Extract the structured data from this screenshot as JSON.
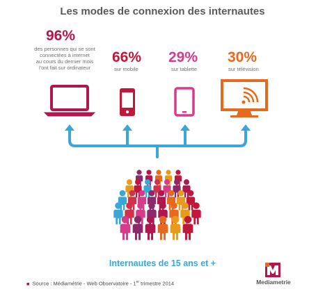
{
  "title": "Les modes de connexion des internautes",
  "stats": [
    {
      "value": "96%",
      "lines": [
        "des personnes qui se sont",
        "connectées à internet",
        "au cours du dernier mois",
        "l'ont fait sur ordinateur"
      ],
      "icon": "laptop-icon",
      "color": "#b0174f"
    },
    {
      "value": "66%",
      "lines": [
        "sur mobile"
      ],
      "icon": "mobile-phone-icon",
      "color": "#c0173b"
    },
    {
      "value": "29%",
      "lines": [
        "sur tablette"
      ],
      "icon": "tablet-icon",
      "color": "#d53c8a"
    },
    {
      "value": "30%",
      "lines": [
        "sur télévision"
      ],
      "icon": "tv-icon",
      "color": "#e56a1e"
    }
  ],
  "arrow_color": "#3ba7d8",
  "crowd_label": "Internautes de 15 ans et +",
  "source": "Source : Médiamétrie - Web Observatoire - 1",
  "source_sup": "er",
  "source_end": " trimestre 2014",
  "logo": {
    "letter": "M",
    "name": "Mediametrie"
  }
}
